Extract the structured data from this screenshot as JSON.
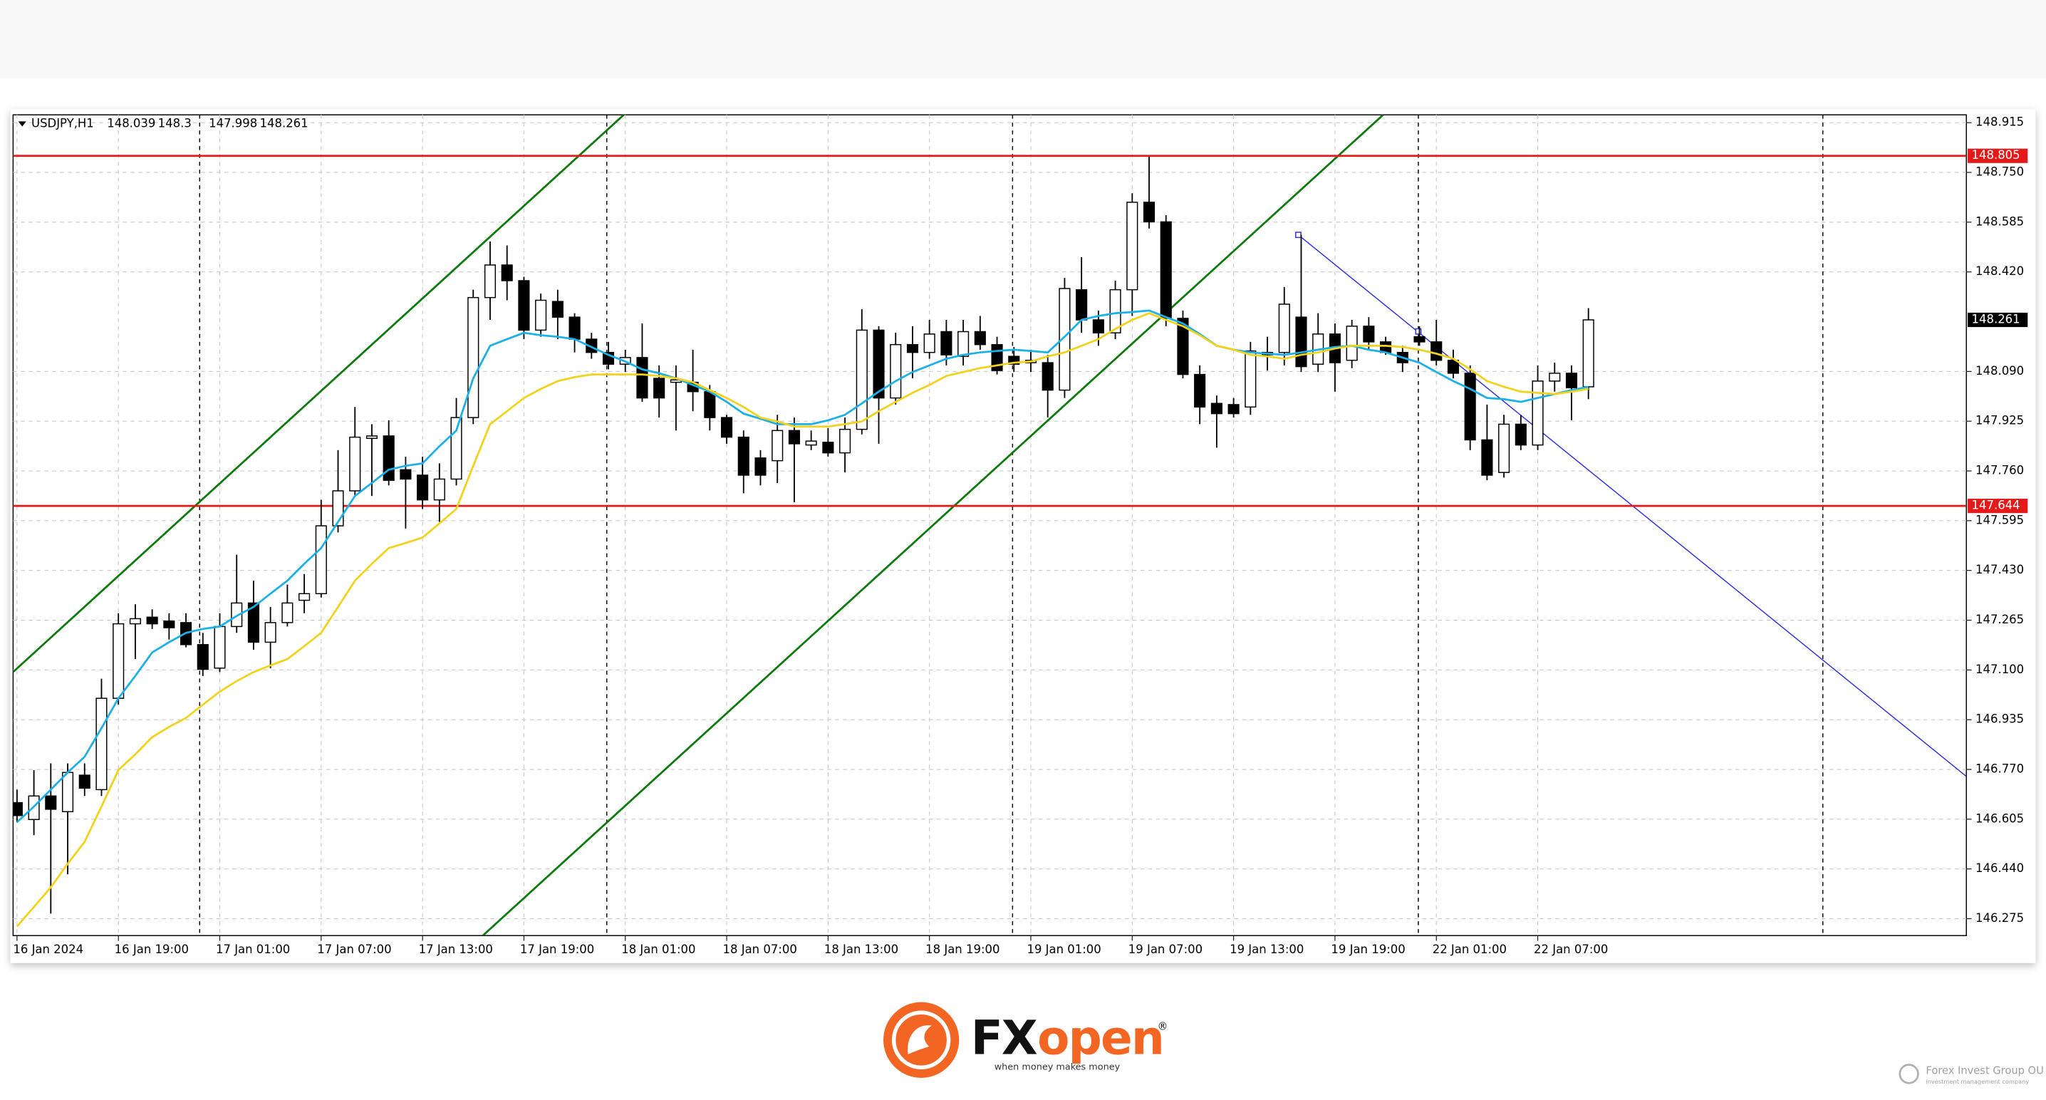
{
  "chart_data": {
    "type": "candlestick",
    "title": "USDJPY,H1",
    "categories": [
      "16 Jan 2024",
      null,
      null,
      null,
      null,
      null,
      "16 Jan 19:00",
      null,
      null,
      null,
      null,
      null,
      "17 Jan 01:00",
      null,
      null,
      null,
      null,
      null,
      "17 Jan 07:00",
      null,
      null,
      null,
      null,
      null,
      "17 Jan 13:00",
      null,
      null,
      null,
      null,
      null,
      "17 Jan 19:00",
      null,
      null,
      null,
      null,
      null,
      "18 Jan 01:00",
      null,
      null,
      null,
      null,
      null,
      "18 Jan 07:00",
      null,
      null,
      null,
      null,
      null,
      "18 Jan 13:00",
      null,
      null,
      null,
      null,
      null,
      "18 Jan 19:00",
      null,
      null,
      null,
      null,
      null,
      "19 Jan 01:00",
      null,
      null,
      null,
      null,
      null,
      "19 Jan 07:00",
      null,
      null,
      null,
      null,
      null,
      "19 Jan 13:00",
      null,
      null,
      null,
      null,
      null,
      "19 Jan 19:00",
      null,
      null,
      null,
      null,
      null,
      "22 Jan 01:00",
      null,
      null,
      null,
      null,
      null,
      "22 Jan 07:00",
      null,
      null,
      null
    ],
    "open": [
      146.66,
      146.604,
      146.682,
      146.63,
      146.751,
      146.703,
      147.006,
      147.253,
      147.275,
      147.262,
      147.257,
      147.184,
      147.106,
      147.244,
      147.322,
      147.192,
      147.257,
      147.331,
      147.353,
      147.578,
      147.694,
      147.868,
      147.876,
      147.764,
      147.746,
      147.664,
      147.733,
      147.937,
      148.335,
      148.443,
      148.391,
      148.227,
      148.322,
      148.27,
      148.197,
      148.153,
      148.114,
      148.136,
      148.067,
      148.054,
      148.054,
      148.023,
      147.937,
      147.872,
      147.803,
      147.794,
      147.894,
      147.846,
      147.855,
      147.82,
      147.898,
      148.227,
      148.002,
      148.179,
      148.153,
      148.222,
      148.14,
      148.222,
      148.179,
      148.14,
      148.119,
      148.119,
      148.028,
      148.361,
      148.261,
      148.218,
      148.361,
      148.651,
      148.586,
      148.266,
      148.08,
      147.984,
      147.98,
      147.972,
      148.145,
      148.153,
      148.27,
      148.114,
      148.214,
      148.127,
      148.24,
      148.188,
      148.153,
      148.205,
      148.188,
      148.127,
      148.084,
      147.863,
      147.755,
      147.915,
      147.846,
      148.058,
      148.084,
      148.039
    ],
    "high": [
      146.703,
      146.768,
      146.79,
      146.79,
      146.79,
      147.071,
      147.288,
      147.318,
      147.301,
      147.288,
      147.288,
      147.223,
      147.288,
      147.482,
      147.396,
      147.309,
      147.383,
      147.418,
      147.664,
      147.829,
      147.972,
      147.915,
      147.928,
      147.807,
      147.807,
      147.785,
      148.002,
      148.361,
      148.521,
      148.508,
      148.404,
      148.348,
      148.361,
      148.283,
      148.218,
      148.188,
      148.162,
      148.249,
      148.11,
      148.11,
      148.162,
      148.045,
      147.946,
      147.894,
      147.829,
      147.946,
      147.937,
      147.894,
      147.902,
      147.937,
      148.296,
      148.24,
      148.218,
      148.24,
      148.261,
      148.261,
      148.261,
      148.274,
      148.205,
      148.171,
      148.162,
      148.145,
      148.4,
      148.469,
      148.292,
      148.391,
      148.681,
      148.802,
      148.608,
      148.292,
      148.11,
      148.01,
      148.002,
      148.188,
      148.205,
      148.37,
      148.543,
      148.283,
      148.249,
      148.261,
      148.27,
      148.205,
      148.175,
      148.24,
      148.261,
      148.162,
      148.11,
      147.98,
      147.946,
      147.946,
      148.11,
      148.119,
      148.11,
      148.3
    ],
    "low": [
      146.595,
      146.552,
      146.292,
      146.422,
      146.682,
      146.682,
      146.985,
      147.136,
      147.236,
      147.201,
      147.175,
      147.08,
      147.093,
      147.223,
      147.167,
      147.106,
      147.244,
      147.288,
      147.34,
      147.556,
      147.677,
      147.677,
      147.712,
      147.569,
      147.634,
      147.591,
      147.712,
      147.915,
      148.261,
      148.326,
      148.197,
      148.205,
      148.197,
      148.153,
      148.132,
      148.097,
      148.088,
      147.989,
      147.937,
      147.894,
      147.958,
      147.894,
      147.85,
      147.686,
      147.712,
      147.72,
      147.656,
      147.829,
      147.807,
      147.755,
      147.881,
      147.85,
      147.98,
      148.067,
      148.132,
      148.11,
      148.11,
      148.162,
      148.08,
      148.088,
      148.088,
      147.937,
      148.002,
      148.218,
      148.175,
      148.197,
      148.274,
      148.564,
      148.24,
      148.067,
      147.915,
      147.837,
      147.937,
      147.946,
      148.093,
      148.11,
      148.088,
      148.088,
      148.023,
      148.101,
      148.162,
      148.145,
      148.088,
      148.175,
      148.11,
      148.067,
      147.829,
      147.729,
      147.738,
      147.829,
      147.829,
      148.023,
      147.928,
      147.998
    ],
    "close": [
      146.617,
      146.682,
      146.638,
      146.76,
      146.708,
      147.006,
      147.253,
      147.27,
      147.253,
      147.24,
      147.184,
      147.102,
      147.244,
      147.322,
      147.192,
      147.257,
      147.322,
      147.353,
      147.578,
      147.694,
      147.872,
      147.876,
      147.729,
      147.733,
      147.664,
      147.733,
      147.937,
      148.335,
      148.443,
      148.391,
      148.227,
      148.326,
      148.27,
      148.197,
      148.153,
      148.114,
      148.136,
      148.002,
      148.002,
      148.062,
      148.023,
      147.937,
      147.872,
      147.746,
      147.746,
      147.894,
      147.85,
      147.859,
      147.82,
      147.898,
      148.227,
      148.002,
      148.179,
      148.153,
      148.214,
      148.145,
      148.222,
      148.179,
      148.093,
      148.114,
      148.127,
      148.028,
      148.365,
      148.261,
      148.218,
      148.361,
      148.651,
      148.586,
      148.266,
      148.08,
      147.972,
      147.95,
      147.95,
      148.158,
      148.153,
      148.313,
      148.106,
      148.214,
      148.119,
      148.24,
      148.188,
      148.153,
      148.119,
      148.188,
      148.127,
      148.084,
      147.863,
      147.746,
      147.915,
      147.846,
      148.058,
      148.084,
      148.036,
      148.261
    ],
    "moving_averages": [
      {
        "color": "#1ab0e8",
        "values": [
          146.595,
          146.647,
          146.703,
          146.76,
          146.812,
          146.907,
          147.006,
          147.08,
          147.158,
          147.192,
          147.223,
          147.236,
          147.244,
          147.279,
          147.309,
          147.353,
          147.396,
          147.452,
          147.504,
          147.591,
          147.677,
          147.72,
          147.764,
          147.777,
          147.785,
          147.842,
          147.894,
          148.067,
          148.175,
          148.197,
          148.218,
          148.21,
          148.205,
          148.197,
          148.171,
          148.145,
          148.123,
          148.097,
          148.084,
          148.067,
          148.045,
          148.023,
          147.989,
          147.95,
          147.933,
          147.915,
          147.915,
          147.915,
          147.928,
          147.946,
          147.984,
          148.023,
          148.058,
          148.088,
          148.11,
          148.132,
          148.145,
          148.153,
          148.158,
          148.162,
          148.158,
          148.153,
          148.205,
          148.261,
          148.274,
          148.283,
          148.287,
          148.292,
          148.27,
          148.249,
          148.214,
          148.175,
          148.162,
          148.153,
          148.149,
          148.145,
          148.153,
          148.162,
          148.171,
          148.175,
          148.162,
          148.153,
          148.136,
          148.119,
          148.088,
          148.058,
          148.032,
          148.002,
          147.998,
          147.989,
          148.002,
          148.015,
          148.028,
          148.039
        ]
      },
      {
        "color": "#f2d21a",
        "values": [
          146.249,
          146.314,
          146.379,
          146.457,
          146.53,
          146.647,
          146.768,
          146.82,
          146.877,
          146.911,
          146.941,
          146.985,
          147.028,
          147.063,
          147.093,
          147.115,
          147.136,
          147.179,
          147.223,
          147.309,
          147.396,
          147.452,
          147.504,
          147.521,
          147.539,
          147.586,
          147.634,
          147.777,
          147.915,
          147.958,
          148.002,
          148.032,
          148.058,
          148.071,
          148.08,
          148.08,
          148.08,
          148.08,
          148.075,
          148.067,
          148.054,
          148.028,
          148.002,
          147.972,
          147.937,
          147.924,
          147.907,
          147.907,
          147.907,
          147.915,
          147.924,
          147.958,
          147.989,
          148.019,
          148.045,
          148.075,
          148.088,
          148.101,
          148.11,
          148.119,
          148.123,
          148.14,
          148.153,
          148.175,
          148.197,
          148.231,
          148.261,
          148.283,
          148.261,
          148.24,
          148.21,
          148.175,
          148.162,
          148.145,
          148.14,
          148.132,
          148.145,
          148.153,
          148.166,
          148.175,
          148.175,
          148.175,
          148.171,
          148.162,
          148.149,
          148.132,
          148.097,
          148.058,
          148.039,
          148.023,
          148.019,
          148.015,
          148.023,
          148.032
        ]
      }
    ],
    "hlines": [
      {
        "value": 148.805,
        "color": "#e41a1a"
      },
      {
        "value": 147.644,
        "color": "#e41a1a"
      }
    ],
    "ylim": [
      146.219,
      148.941
    ],
    "yticks": [
      148.915,
      {
        "value": 148.75,
        "label": "148.750"
      },
      148.585,
      {
        "value": 148.42,
        "label": "148.420"
      },
      {
        "value": 148.09,
        "label": "148.090"
      },
      147.925,
      {
        "value": 147.76,
        "label": "147.760"
      },
      147.595,
      {
        "value": 147.43,
        "label": "147.430"
      },
      147.265,
      {
        "value": 147.1,
        "label": "147.100"
      },
      146.935,
      {
        "value": 146.77,
        "label": "146.770"
      },
      146.605,
      {
        "value": 146.44,
        "label": "146.440"
      },
      146.275
    ],
    "grid": true,
    "up_color": "#ffffff",
    "down_color": "#000000"
  },
  "branding": {
    "fx": "FX",
    "open": "open",
    "registered": "®",
    "tagline": "when money makes money",
    "partner": "Forex Invest Group OU",
    "partner_sub": "investment management company"
  }
}
